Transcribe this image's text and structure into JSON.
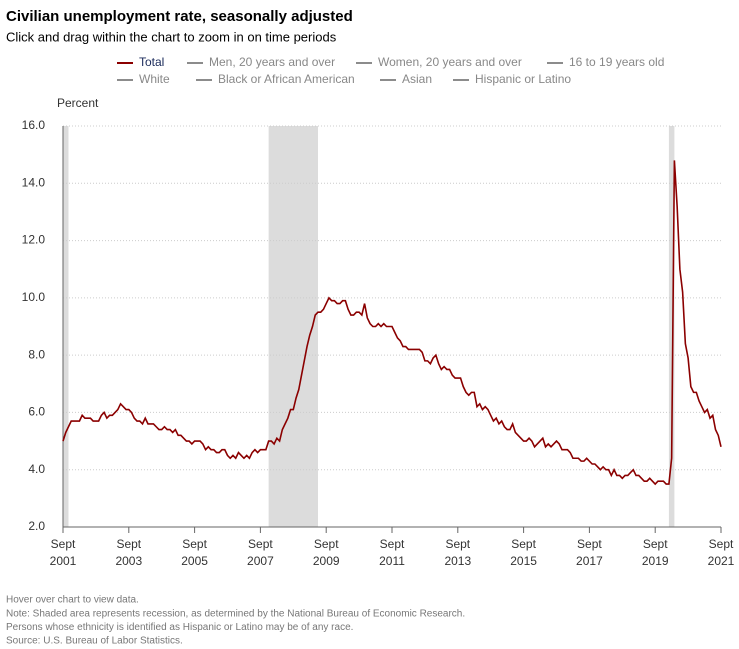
{
  "chart_data": {
    "type": "line",
    "title": "Civilian unemployment rate, seasonally adjusted",
    "subtitle": "Click and drag within the chart to zoom in on time periods",
    "y_label": "Percent",
    "x": [
      "2001-09",
      "2001-10",
      "2001-11",
      "2001-12",
      "2002-01",
      "2002-02",
      "2002-03",
      "2002-04",
      "2002-05",
      "2002-06",
      "2002-07",
      "2002-08",
      "2002-09",
      "2002-10",
      "2002-11",
      "2002-12",
      "2003-01",
      "2003-02",
      "2003-03",
      "2003-04",
      "2003-05",
      "2003-06",
      "2003-07",
      "2003-08",
      "2003-09",
      "2003-10",
      "2003-11",
      "2003-12",
      "2004-01",
      "2004-02",
      "2004-03",
      "2004-04",
      "2004-05",
      "2004-06",
      "2004-07",
      "2004-08",
      "2004-09",
      "2004-10",
      "2004-11",
      "2004-12",
      "2005-01",
      "2005-02",
      "2005-03",
      "2005-04",
      "2005-05",
      "2005-06",
      "2005-07",
      "2005-08",
      "2005-09",
      "2005-10",
      "2005-11",
      "2005-12",
      "2006-01",
      "2006-02",
      "2006-03",
      "2006-04",
      "2006-05",
      "2006-06",
      "2006-07",
      "2006-08",
      "2006-09",
      "2006-10",
      "2006-11",
      "2006-12",
      "2007-01",
      "2007-02",
      "2007-03",
      "2007-04",
      "2007-05",
      "2007-06",
      "2007-07",
      "2007-08",
      "2007-09",
      "2007-10",
      "2007-11",
      "2007-12",
      "2008-01",
      "2008-02",
      "2008-03",
      "2008-04",
      "2008-05",
      "2008-06",
      "2008-07",
      "2008-08",
      "2008-09",
      "2008-10",
      "2008-11",
      "2008-12",
      "2009-01",
      "2009-02",
      "2009-03",
      "2009-04",
      "2009-05",
      "2009-06",
      "2009-07",
      "2009-08",
      "2009-09",
      "2009-10",
      "2009-11",
      "2009-12",
      "2010-01",
      "2010-02",
      "2010-03",
      "2010-04",
      "2010-05",
      "2010-06",
      "2010-07",
      "2010-08",
      "2010-09",
      "2010-10",
      "2010-11",
      "2010-12",
      "2011-01",
      "2011-02",
      "2011-03",
      "2011-04",
      "2011-05",
      "2011-06",
      "2011-07",
      "2011-08",
      "2011-09",
      "2011-10",
      "2011-11",
      "2011-12",
      "2012-01",
      "2012-02",
      "2012-03",
      "2012-04",
      "2012-05",
      "2012-06",
      "2012-07",
      "2012-08",
      "2012-09",
      "2012-10",
      "2012-11",
      "2012-12",
      "2013-01",
      "2013-02",
      "2013-03",
      "2013-04",
      "2013-05",
      "2013-06",
      "2013-07",
      "2013-08",
      "2013-09",
      "2013-10",
      "2013-11",
      "2013-12",
      "2014-01",
      "2014-02",
      "2014-03",
      "2014-04",
      "2014-05",
      "2014-06",
      "2014-07",
      "2014-08",
      "2014-09",
      "2014-10",
      "2014-11",
      "2014-12",
      "2015-01",
      "2015-02",
      "2015-03",
      "2015-04",
      "2015-05",
      "2015-06",
      "2015-07",
      "2015-08",
      "2015-09",
      "2015-10",
      "2015-11",
      "2015-12",
      "2016-01",
      "2016-02",
      "2016-03",
      "2016-04",
      "2016-05",
      "2016-06",
      "2016-07",
      "2016-08",
      "2016-09",
      "2016-10",
      "2016-11",
      "2016-12",
      "2017-01",
      "2017-02",
      "2017-03",
      "2017-04",
      "2017-05",
      "2017-06",
      "2017-07",
      "2017-08",
      "2017-09",
      "2017-10",
      "2017-11",
      "2017-12",
      "2018-01",
      "2018-02",
      "2018-03",
      "2018-04",
      "2018-05",
      "2018-06",
      "2018-07",
      "2018-08",
      "2018-09",
      "2018-10",
      "2018-11",
      "2018-12",
      "2019-01",
      "2019-02",
      "2019-03",
      "2019-04",
      "2019-05",
      "2019-06",
      "2019-07",
      "2019-08",
      "2019-09",
      "2019-10",
      "2019-11",
      "2019-12",
      "2020-01",
      "2020-02",
      "2020-03",
      "2020-04",
      "2020-05",
      "2020-06",
      "2020-07",
      "2020-08",
      "2020-09",
      "2020-10",
      "2020-11",
      "2020-12",
      "2021-01",
      "2021-02",
      "2021-03",
      "2021-04",
      "2021-05",
      "2021-06",
      "2021-07",
      "2021-08",
      "2021-09"
    ],
    "series": [
      {
        "name": "Total",
        "color": "#8b0000",
        "values": [
          5.0,
          5.3,
          5.5,
          5.7,
          5.7,
          5.7,
          5.7,
          5.9,
          5.8,
          5.8,
          5.8,
          5.7,
          5.7,
          5.7,
          5.9,
          6.0,
          5.8,
          5.9,
          5.9,
          6.0,
          6.1,
          6.3,
          6.2,
          6.1,
          6.1,
          6.0,
          5.8,
          5.7,
          5.7,
          5.6,
          5.8,
          5.6,
          5.6,
          5.6,
          5.5,
          5.4,
          5.4,
          5.5,
          5.4,
          5.4,
          5.3,
          5.4,
          5.2,
          5.2,
          5.1,
          5.0,
          5.0,
          4.9,
          5.0,
          5.0,
          5.0,
          4.9,
          4.7,
          4.8,
          4.7,
          4.7,
          4.6,
          4.6,
          4.7,
          4.7,
          4.5,
          4.4,
          4.5,
          4.4,
          4.6,
          4.5,
          4.4,
          4.5,
          4.4,
          4.6,
          4.7,
          4.6,
          4.7,
          4.7,
          4.7,
          5.0,
          5.0,
          4.9,
          5.1,
          5.0,
          5.4,
          5.6,
          5.8,
          6.1,
          6.1,
          6.5,
          6.8,
          7.3,
          7.8,
          8.3,
          8.7,
          9.0,
          9.4,
          9.5,
          9.5,
          9.6,
          9.8,
          10.0,
          9.9,
          9.9,
          9.8,
          9.8,
          9.9,
          9.9,
          9.6,
          9.4,
          9.4,
          9.5,
          9.5,
          9.4,
          9.8,
          9.3,
          9.1,
          9.0,
          9.0,
          9.1,
          9.0,
          9.1,
          9.0,
          9.0,
          9.0,
          8.8,
          8.6,
          8.5,
          8.3,
          8.3,
          8.2,
          8.2,
          8.2,
          8.2,
          8.2,
          8.1,
          7.8,
          7.8,
          7.7,
          7.9,
          8.0,
          7.7,
          7.5,
          7.6,
          7.5,
          7.5,
          7.3,
          7.2,
          7.2,
          7.2,
          6.9,
          6.7,
          6.6,
          6.7,
          6.7,
          6.2,
          6.3,
          6.1,
          6.2,
          6.1,
          5.9,
          5.7,
          5.8,
          5.6,
          5.7,
          5.5,
          5.4,
          5.4,
          5.6,
          5.3,
          5.2,
          5.1,
          5.0,
          5.0,
          5.1,
          5.0,
          4.8,
          4.9,
          5.0,
          5.1,
          4.8,
          4.9,
          4.8,
          4.9,
          5.0,
          4.9,
          4.7,
          4.7,
          4.7,
          4.6,
          4.4,
          4.4,
          4.4,
          4.3,
          4.3,
          4.4,
          4.3,
          4.2,
          4.2,
          4.1,
          4.0,
          4.1,
          4.0,
          4.0,
          3.8,
          4.0,
          3.8,
          3.8,
          3.7,
          3.8,
          3.8,
          3.9,
          4.0,
          3.8,
          3.8,
          3.7,
          3.6,
          3.6,
          3.7,
          3.6,
          3.5,
          3.6,
          3.6,
          3.6,
          3.5,
          3.5,
          4.4,
          14.8,
          13.2,
          11.0,
          10.2,
          8.4,
          7.9,
          6.9,
          6.7,
          6.7,
          6.4,
          6.2,
          6.0,
          6.1,
          5.8,
          5.9,
          5.4,
          5.2,
          4.8
        ]
      }
    ],
    "inactive_series": [
      "Men, 20 years and over",
      "Women, 20 years and over",
      "16 to 19 years old",
      "White",
      "Black or African American",
      "Asian",
      "Hispanic or Latino"
    ],
    "inactive_color": "#8c8c8c",
    "recessions": [
      [
        "2001-09",
        "2001-11"
      ],
      [
        "2007-12",
        "2009-06"
      ],
      [
        "2020-02",
        "2020-04"
      ]
    ],
    "recession_color": "#dcdcdc",
    "ylim": [
      2,
      16
    ],
    "yticks": [
      {
        "value": 2,
        "label": "2.0"
      },
      {
        "value": 4,
        "label": "4.0"
      },
      {
        "value": 6,
        "label": "6.0"
      },
      {
        "value": 8,
        "label": "8.0"
      },
      {
        "value": 10,
        "label": "10.0"
      },
      {
        "value": 12,
        "label": "12.0"
      },
      {
        "value": 14,
        "label": "14.0"
      },
      {
        "value": 16,
        "label": "16.0"
      }
    ],
    "xticks": [
      {
        "value": "2001-09",
        "label": [
          "Sept",
          "2001"
        ]
      },
      {
        "value": "2003-09",
        "label": [
          "Sept",
          "2003"
        ]
      },
      {
        "value": "2005-09",
        "label": [
          "Sept",
          "2005"
        ]
      },
      {
        "value": "2007-09",
        "label": [
          "Sept",
          "2007"
        ]
      },
      {
        "value": "2009-09",
        "label": [
          "Sept",
          "2009"
        ]
      },
      {
        "value": "2011-09",
        "label": [
          "Sept",
          "2011"
        ]
      },
      {
        "value": "2013-09",
        "label": [
          "Sept",
          "2013"
        ]
      },
      {
        "value": "2015-09",
        "label": [
          "Sept",
          "2015"
        ]
      },
      {
        "value": "2017-09",
        "label": [
          "Sept",
          "2017"
        ]
      },
      {
        "value": "2019-09",
        "label": [
          "Sept",
          "2019"
        ]
      },
      {
        "value": "2021-09",
        "label": [
          "Sept",
          "2021"
        ]
      }
    ],
    "grid": true,
    "notes": [
      "Hover over chart to view data.",
      "Note: Shaded area represents recession, as determined by the National Bureau of Economic Research.",
      "Persons whose ethnicity is identified as Hispanic or Latino may be of any race.",
      "Source: U.S. Bureau of Labor Statistics."
    ]
  }
}
